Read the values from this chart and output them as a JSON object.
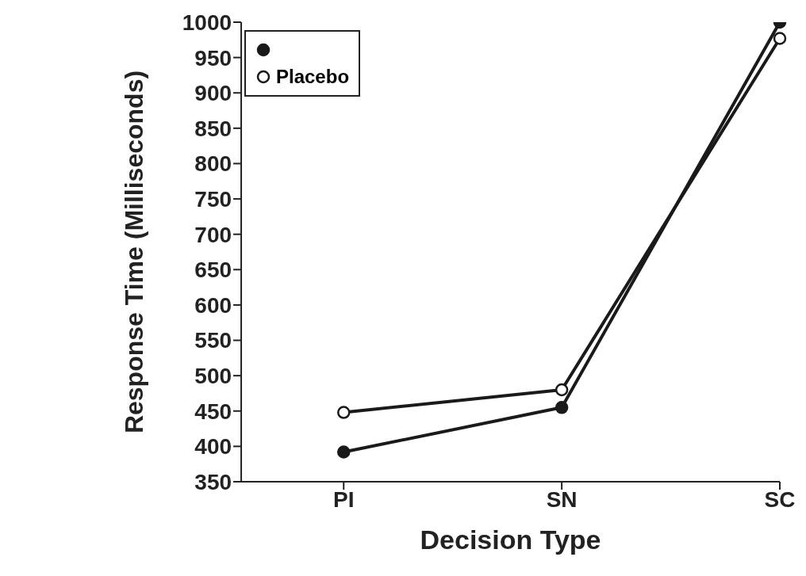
{
  "chart_data": {
    "type": "line",
    "xlabel": "Decision Type",
    "ylabel": "Response Time (Milliseconds)",
    "categories": [
      "PI",
      "SN",
      "SC"
    ],
    "series": [
      {
        "color": "#1a1a1a",
        "values": [
          392,
          455,
          1000
        ]
      },
      {
        "name": "Placebo",
        "color": "#1a1a1a",
        "values": [
          448,
          480,
          977
        ]
      }
    ],
    "ylim": [
      350,
      1000
    ],
    "yticks": [
      350,
      400,
      450,
      500,
      550,
      600,
      650,
      700,
      750,
      800,
      850,
      900,
      950,
      1000
    ],
    "grid": false,
    "legend": "top left",
    "marker": "circle",
    "line_style": "solid"
  }
}
